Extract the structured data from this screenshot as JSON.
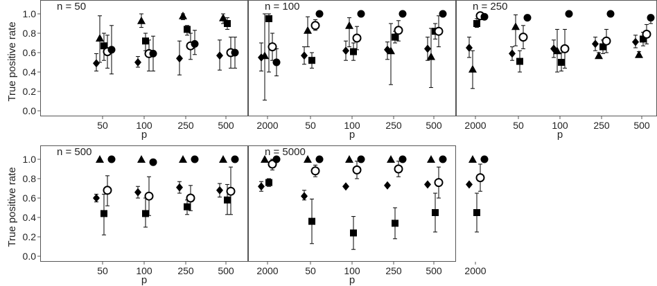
{
  "figure": {
    "ylabel": "True positive rate",
    "xlabel": "p"
  },
  "chart_data": {
    "type": "scatter",
    "ylabel": "True positive rate",
    "xlabel": "p",
    "ylim": [
      0,
      1
    ],
    "yticks": [
      "0.0",
      "0.2",
      "0.4",
      "0.6",
      "0.8",
      "1.0"
    ],
    "categories": [
      "50",
      "100",
      "250",
      "500",
      "2000"
    ],
    "markers": [
      "filled-diamond",
      "filled-triangle",
      "filled-square",
      "open-circle",
      "filled-circle"
    ],
    "panels": [
      {
        "label": "n = 50",
        "series": [
          {
            "marker": "filled-diamond",
            "values": [
              0.49,
              0.5,
              0.54,
              0.57,
              0.55
            ],
            "lower": [
              0.41,
              0.45,
              0.37,
              0.42,
              0.41
            ],
            "upper": [
              0.59,
              0.56,
              0.72,
              0.73,
              0.7
            ]
          },
          {
            "marker": "filled-triangle",
            "values": [
              0.75,
              0.93,
              0.98,
              0.96,
              0.57
            ],
            "lower": [
              0.5,
              0.86,
              0.94,
              0.9,
              0.11
            ],
            "upper": [
              0.98,
              1.0,
              1.0,
              1.0,
              1.0
            ]
          },
          {
            "marker": "filled-square",
            "values": [
              0.67,
              0.72,
              0.84,
              0.9,
              0.95
            ],
            "lower": [
              0.52,
              0.62,
              0.78,
              0.84,
              0.4
            ],
            "upper": [
              0.8,
              0.8,
              0.88,
              0.96,
              1.0
            ]
          },
          {
            "marker": "open-circle",
            "values": [
              0.61,
              0.59,
              0.67,
              0.6,
              0.66
            ],
            "lower": [
              0.44,
              0.41,
              0.53,
              0.44,
              0.52
            ],
            "upper": [
              0.78,
              0.73,
              0.8,
              0.76,
              0.8
            ]
          },
          {
            "marker": "filled-circle",
            "values": [
              0.63,
              0.59,
              0.69,
              0.6,
              0.5
            ],
            "lower": [
              0.38,
              0.41,
              0.58,
              0.44,
              0.36
            ],
            "upper": [
              0.88,
              0.77,
              0.83,
              0.76,
              0.64
            ]
          }
        ]
      },
      {
        "label": "n = 100",
        "series": [
          {
            "marker": "filled-diamond",
            "values": [
              0.57,
              0.62,
              0.63,
              0.64,
              0.65
            ],
            "lower": [
              0.48,
              0.52,
              0.53,
              0.52,
              0.55
            ],
            "upper": [
              0.66,
              0.72,
              0.71,
              0.76,
              0.76
            ]
          },
          {
            "marker": "filled-triangle",
            "values": [
              0.83,
              0.88,
              0.62,
              0.56,
              0.43
            ],
            "lower": [
              0.66,
              0.66,
              0.27,
              0.24,
              0.23
            ],
            "upper": [
              0.97,
              0.96,
              0.9,
              0.85,
              0.62
            ]
          },
          {
            "marker": "filled-square",
            "values": [
              0.52,
              0.61,
              0.76,
              0.82,
              0.9
            ],
            "lower": [
              0.44,
              0.52,
              0.7,
              0.74,
              0.86
            ],
            "upper": [
              0.6,
              0.7,
              0.82,
              0.9,
              0.95
            ]
          },
          {
            "marker": "open-circle",
            "values": [
              0.88,
              0.75,
              0.83,
              0.82,
              0.98
            ],
            "lower": [
              0.83,
              0.63,
              0.72,
              0.66,
              0.94
            ],
            "upper": [
              0.94,
              0.87,
              0.93,
              0.98,
              1.0
            ]
          },
          {
            "marker": "filled-circle",
            "values": [
              1.0,
              1.0,
              1.0,
              1.0,
              0.97
            ],
            "lower": [
              1.0,
              1.0,
              1.0,
              1.0,
              0.94
            ],
            "upper": [
              1.0,
              1.0,
              1.0,
              1.0,
              1.0
            ]
          }
        ]
      },
      {
        "label": "n = 250",
        "series": [
          {
            "marker": "filled-diamond",
            "values": [
              0.59,
              0.64,
              0.69,
              0.71,
              0.69
            ],
            "lower": [
              0.52,
              0.55,
              0.62,
              0.65,
              0.62
            ],
            "upper": [
              0.66,
              0.73,
              0.76,
              0.78,
              0.76
            ]
          },
          {
            "marker": "filled-triangle",
            "values": [
              0.87,
              0.62,
              0.57,
              0.58,
              0.57
            ],
            "lower": [
              0.67,
              0.4,
              0.54,
              0.55,
              0.54
            ],
            "upper": [
              0.99,
              0.84,
              0.6,
              0.61,
              0.6
            ]
          },
          {
            "marker": "filled-square",
            "values": [
              0.51,
              0.5,
              0.66,
              0.74,
              0.85
            ],
            "lower": [
              0.4,
              0.41,
              0.59,
              0.67,
              0.77
            ],
            "upper": [
              0.62,
              0.6,
              0.73,
              0.81,
              0.93
            ]
          },
          {
            "marker": "open-circle",
            "values": [
              0.76,
              0.64,
              0.72,
              0.79,
              0.88
            ],
            "lower": [
              0.64,
              0.44,
              0.6,
              0.69,
              0.78
            ],
            "upper": [
              0.88,
              0.84,
              0.84,
              0.89,
              0.98
            ]
          },
          {
            "marker": "filled-circle",
            "values": [
              0.96,
              1.0,
              1.0,
              0.96,
              1.0
            ],
            "lower": [
              0.94,
              1.0,
              1.0,
              0.9,
              1.0
            ],
            "upper": [
              0.98,
              1.0,
              1.0,
              0.99,
              1.0
            ]
          }
        ]
      },
      {
        "label": "n = 500",
        "series": [
          {
            "marker": "filled-diamond",
            "values": [
              0.6,
              0.66,
              0.71,
              0.68,
              0.72
            ],
            "lower": [
              0.56,
              0.6,
              0.65,
              0.61,
              0.67
            ],
            "upper": [
              0.64,
              0.72,
              0.77,
              0.75,
              0.77
            ]
          },
          {
            "marker": "filled-triangle",
            "values": [
              1.0,
              1.0,
              1.0,
              1.0,
              1.0
            ],
            "lower": [
              1.0,
              1.0,
              1.0,
              1.0,
              1.0
            ],
            "upper": [
              1.0,
              1.0,
              1.0,
              1.0,
              1.0
            ]
          },
          {
            "marker": "filled-square",
            "values": [
              0.44,
              0.44,
              0.51,
              0.58,
              0.76
            ],
            "lower": [
              0.22,
              0.3,
              0.43,
              0.43,
              0.72
            ],
            "upper": [
              0.64,
              0.6,
              0.58,
              0.74,
              0.8
            ]
          },
          {
            "marker": "open-circle",
            "values": [
              0.68,
              0.62,
              0.6,
              0.67,
              0.95
            ],
            "lower": [
              0.52,
              0.42,
              0.47,
              0.43,
              0.89
            ],
            "upper": [
              0.83,
              0.82,
              0.73,
              0.92,
              1.0
            ]
          },
          {
            "marker": "filled-circle",
            "values": [
              1.0,
              0.97,
              1.0,
              1.0,
              1.0
            ],
            "lower": [
              1.0,
              0.94,
              1.0,
              1.0,
              1.0
            ],
            "upper": [
              1.0,
              1.0,
              1.0,
              1.0,
              1.0
            ]
          }
        ]
      },
      {
        "label": "n = 5000",
        "series": [
          {
            "marker": "filled-diamond",
            "values": [
              0.62,
              0.72,
              0.73,
              0.74,
              0.74
            ],
            "lower": [
              0.58,
              0.72,
              0.73,
              0.74,
              0.74
            ],
            "upper": [
              0.68,
              0.72,
              0.73,
              0.74,
              0.74
            ]
          },
          {
            "marker": "filled-triangle",
            "values": [
              1.0,
              1.0,
              1.0,
              1.0,
              1.0
            ],
            "lower": [
              1.0,
              1.0,
              1.0,
              1.0,
              1.0
            ],
            "upper": [
              1.0,
              1.0,
              1.0,
              1.0,
              1.0
            ]
          },
          {
            "marker": "filled-square",
            "values": [
              0.36,
              0.24,
              0.34,
              0.45,
              0.45
            ],
            "lower": [
              0.13,
              0.07,
              0.18,
              0.25,
              0.25
            ],
            "upper": [
              0.59,
              0.41,
              0.5,
              0.65,
              0.65
            ]
          },
          {
            "marker": "open-circle",
            "values": [
              0.88,
              0.89,
              0.9,
              0.76,
              0.81
            ],
            "lower": [
              0.82,
              0.8,
              0.82,
              0.6,
              0.67
            ],
            "upper": [
              0.94,
              0.98,
              0.98,
              0.92,
              0.95
            ]
          },
          {
            "marker": "filled-circle",
            "values": [
              1.0,
              1.0,
              1.0,
              1.0,
              1.0
            ],
            "lower": [
              1.0,
              1.0,
              1.0,
              1.0,
              1.0
            ],
            "upper": [
              1.0,
              1.0,
              1.0,
              1.0,
              1.0
            ]
          }
        ]
      }
    ]
  }
}
